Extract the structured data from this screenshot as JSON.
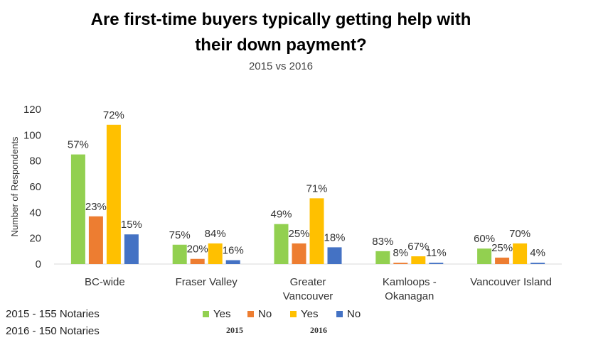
{
  "chart_data": {
    "type": "bar",
    "title": "Are first-time buyers typically getting help with their down payment?",
    "subtitle": "2015 vs 2016",
    "ylabel": "Number of Respondents",
    "ylim": [
      0,
      120
    ],
    "yticks": [
      0,
      20,
      40,
      60,
      80,
      100,
      120
    ],
    "grid": false,
    "categories": [
      "BC-wide",
      "Fraser Valley",
      "Greater Vancouver",
      "Kamloops - Okanagan",
      "Vancouver Island"
    ],
    "category_lines": [
      [
        "BC-wide"
      ],
      [
        "Fraser Valley"
      ],
      [
        "Greater",
        "Vancouver"
      ],
      [
        "Kamloops -",
        "Okanagan"
      ],
      [
        "Vancouver Island"
      ]
    ],
    "series": [
      {
        "name": "Yes",
        "group": "2015",
        "color": "#92d050",
        "values": [
          85,
          15,
          31,
          10,
          12
        ],
        "labels": [
          "57%",
          "75%",
          "49%",
          "83%",
          "60%"
        ]
      },
      {
        "name": "No",
        "group": "2015",
        "color": "#ed7d31",
        "values": [
          37,
          4,
          16,
          1,
          5
        ],
        "labels": [
          "23%",
          "20%",
          "25%",
          "8%",
          "25%"
        ]
      },
      {
        "name": "Yes",
        "group": "2016",
        "color": "#ffc000",
        "values": [
          108,
          16,
          51,
          6,
          16
        ],
        "labels": [
          "72%",
          "84%",
          "71%",
          "67%",
          "70%"
        ]
      },
      {
        "name": "No",
        "group": "2016",
        "color": "#4472c4",
        "values": [
          23,
          3,
          13,
          1,
          1
        ],
        "labels": [
          "15%",
          "16%",
          "18%",
          "11%",
          "4%"
        ]
      }
    ],
    "legend": {
      "placement": "bottom",
      "items": [
        "Yes",
        "No",
        "Yes",
        "No"
      ],
      "groups": [
        "2015",
        "2016"
      ]
    }
  },
  "notes": [
    "2015 - 155 Notaries",
    "2016 - 150 Notaries"
  ]
}
